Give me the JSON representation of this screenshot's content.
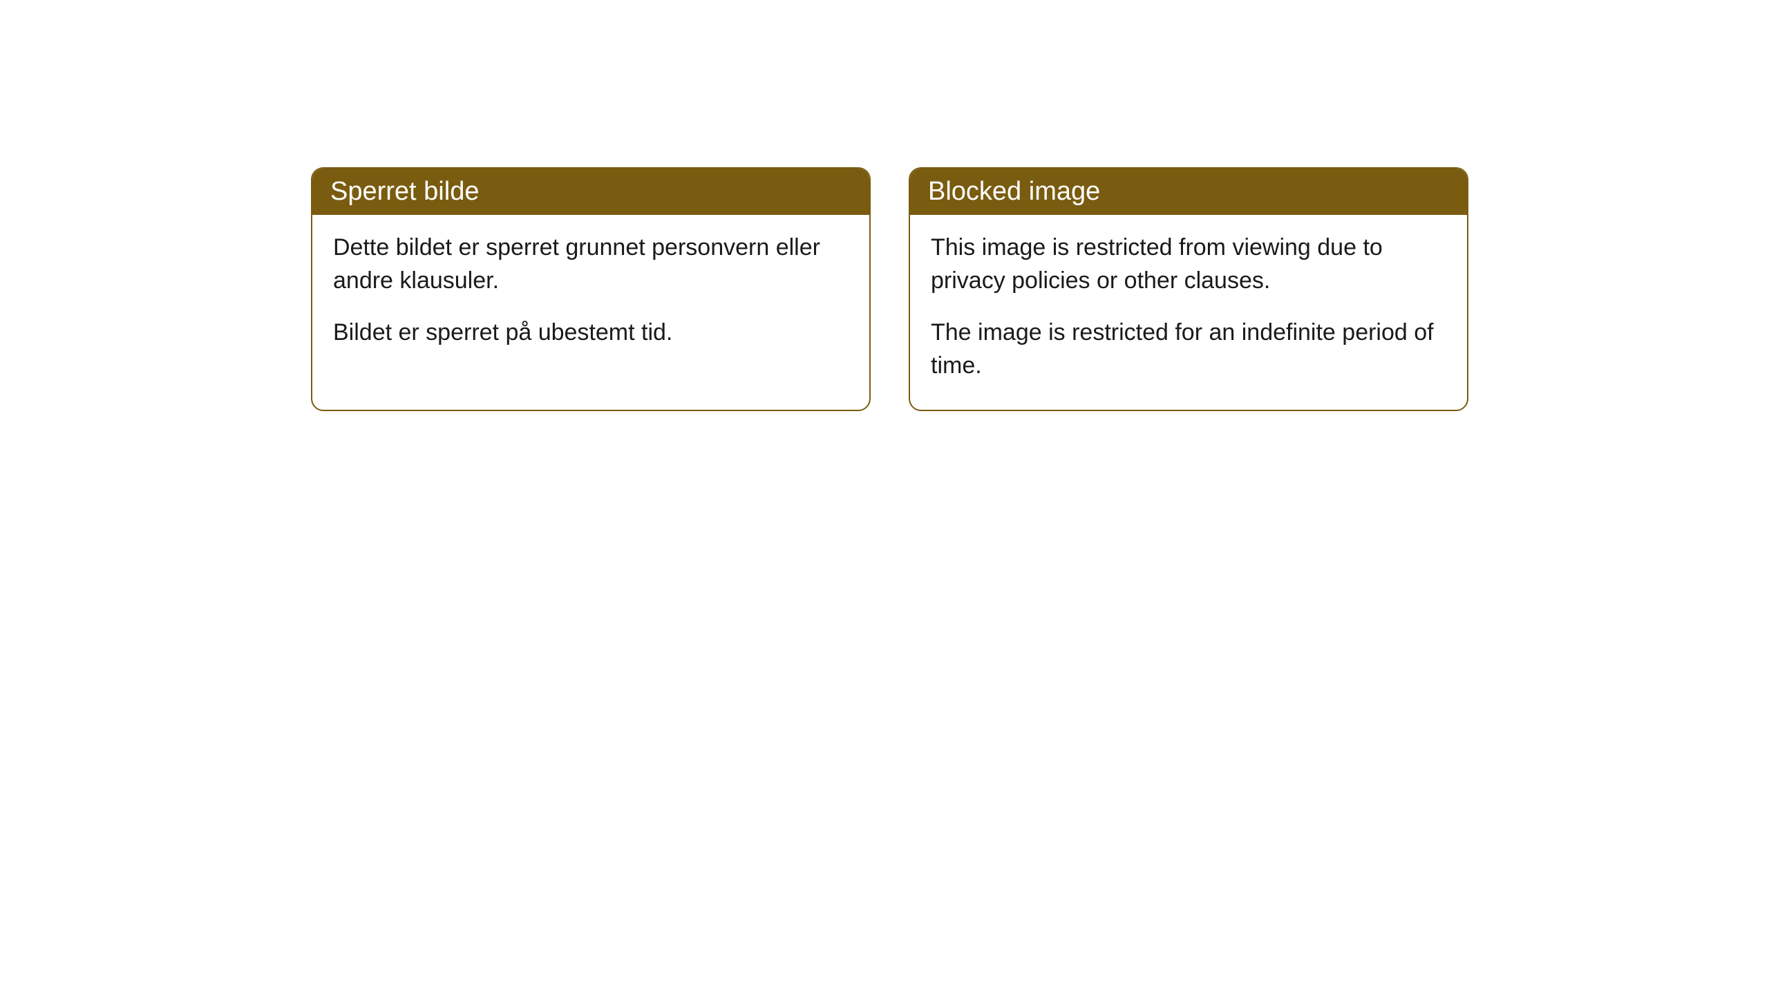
{
  "cards": [
    {
      "title": "Sperret bilde",
      "paragraph1": "Dette bildet er sperret grunnet personvern eller andre klausuler.",
      "paragraph2": "Bildet er sperret på ubestemt tid."
    },
    {
      "title": "Blocked image",
      "paragraph1": "This image is restricted from viewing due to privacy policies or other clauses.",
      "paragraph2": "The image is restricted for an indefinite period of time."
    }
  ],
  "styling": {
    "header_background": "#7a5c10",
    "header_text_color": "#ffffff",
    "border_color": "#7a5c10",
    "body_background": "#ffffff",
    "body_text_color": "#1a1a1a",
    "border_radius": 18,
    "header_fontsize": 38,
    "body_fontsize": 34
  }
}
